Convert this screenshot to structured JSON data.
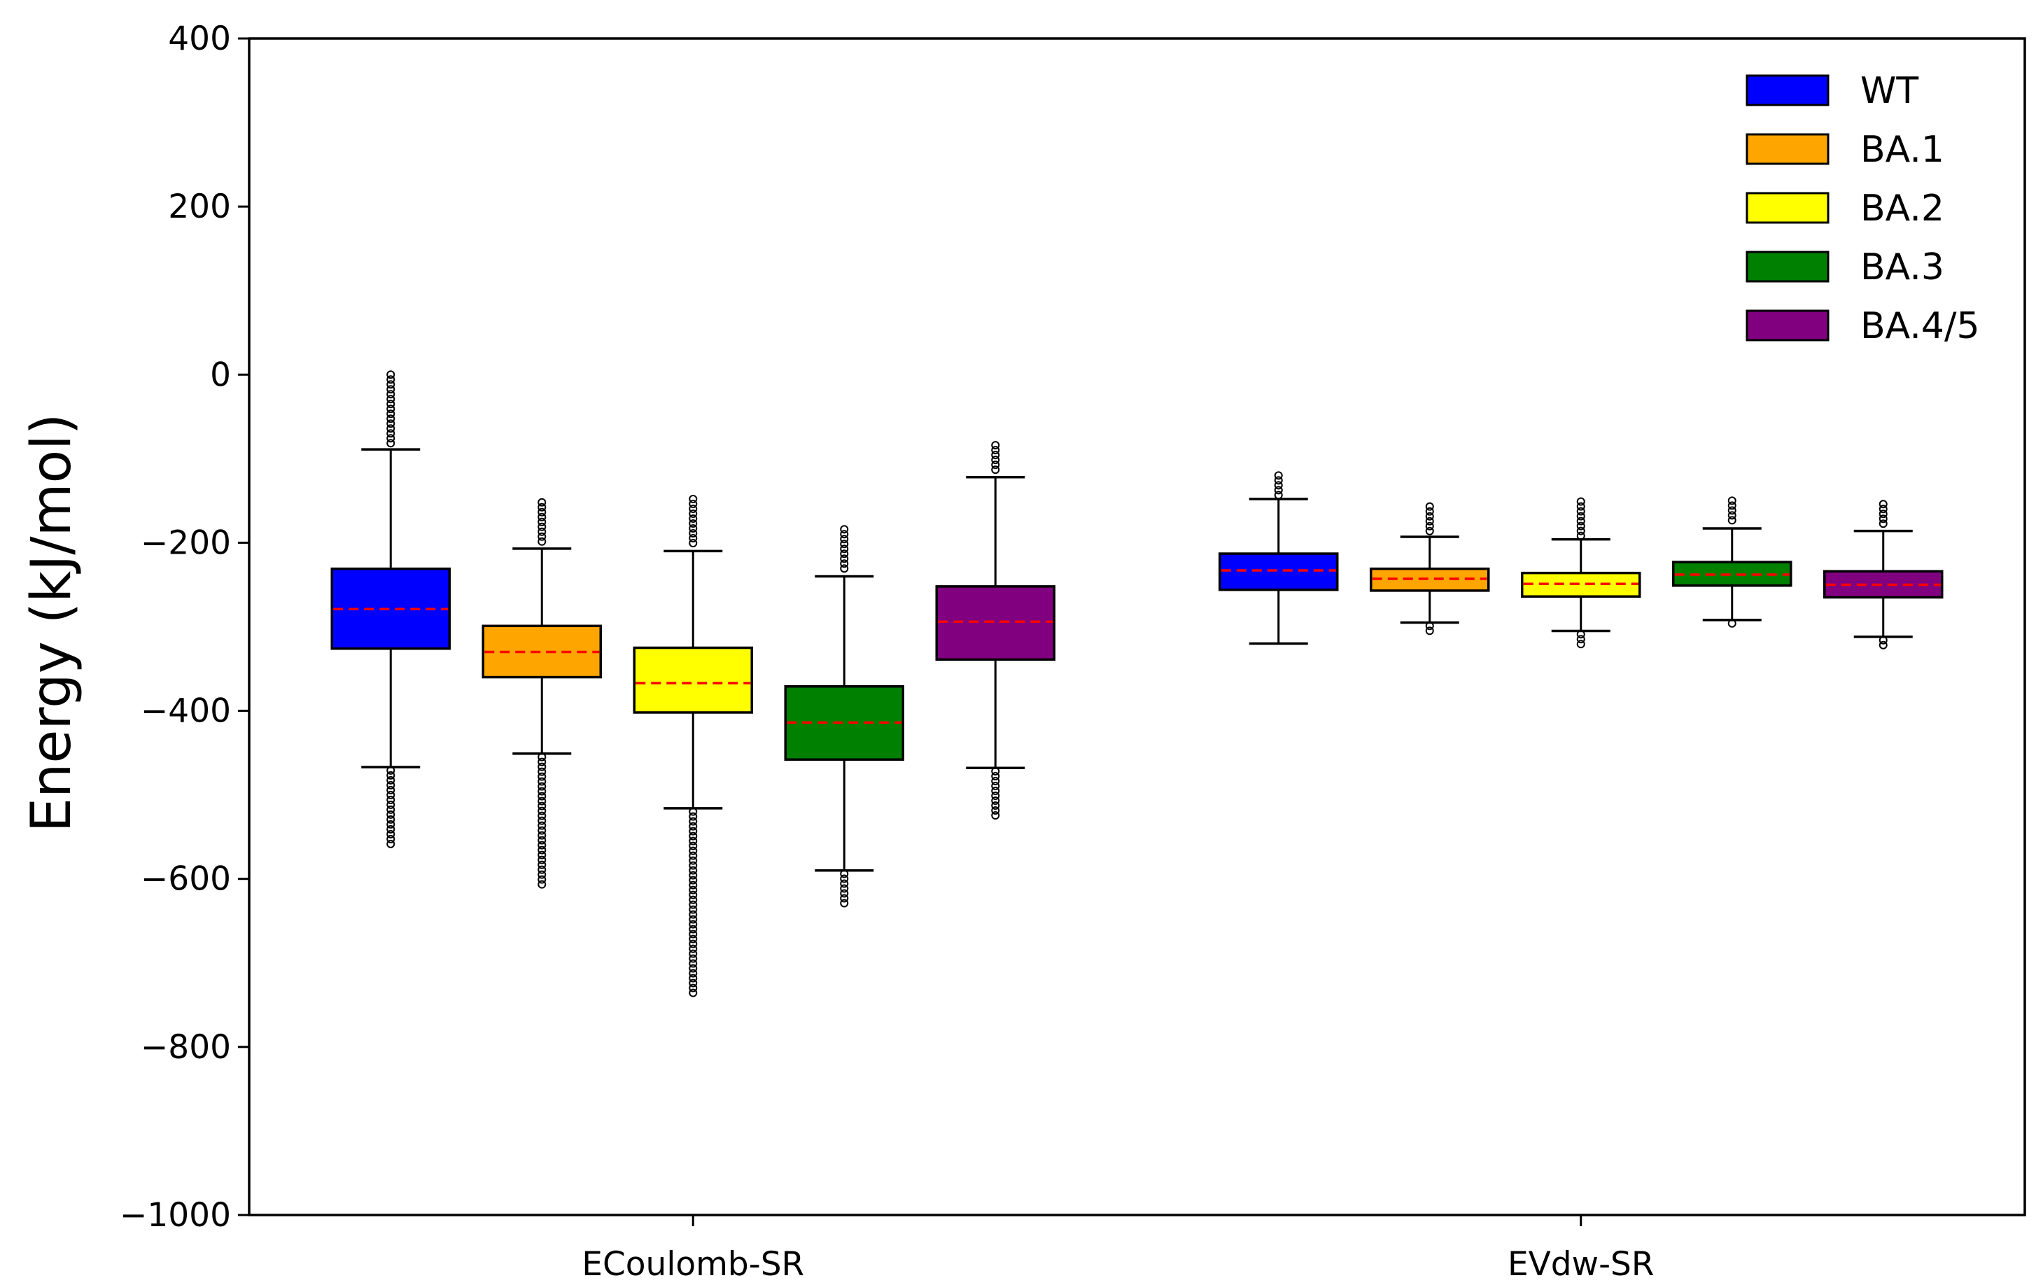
{
  "chart_data": {
    "type": "box",
    "title": "",
    "xlabel": "",
    "ylabel": "Energy  (kJ/mol)",
    "ylim": [
      -1000,
      400
    ],
    "yticks": [
      400,
      200,
      0,
      -200,
      -400,
      -600,
      -800,
      -1000
    ],
    "ytick_labels": [
      "400",
      "200",
      "0",
      "−200",
      "−400",
      "−600",
      "−800",
      "−1000"
    ],
    "categories": [
      "ECoulomb-SR",
      "EVdw-SR"
    ],
    "grid": false,
    "legend_position": "top-right",
    "median_color": "#ff0000",
    "series": [
      {
        "name": "WT",
        "color": "#0000ff",
        "boxes": [
          {
            "q1": -326,
            "median": -279,
            "q3": -231,
            "whisker_low": -467,
            "whisker_high": -89,
            "outlier_low": -563,
            "outlier_high": 0
          },
          {
            "q1": -256,
            "median": -233,
            "q3": -213,
            "whisker_low": -320,
            "whisker_high": -148,
            "outlier_low": -320,
            "outlier_high": -120
          }
        ]
      },
      {
        "name": "BA.1",
        "color": "#ffa500",
        "boxes": [
          {
            "q1": -360,
            "median": -330,
            "q3": -299,
            "whisker_low": -451,
            "whisker_high": -207,
            "outlier_low": -612,
            "outlier_high": -152
          },
          {
            "q1": -257,
            "median": -243,
            "q3": -231,
            "whisker_low": -295,
            "whisker_high": -193,
            "outlier_low": -308,
            "outlier_high": -157
          }
        ]
      },
      {
        "name": "BA.2",
        "color": "#ffff00",
        "boxes": [
          {
            "q1": -402,
            "median": -367,
            "q3": -325,
            "whisker_low": -516,
            "whisker_high": -210,
            "outlier_low": -737,
            "outlier_high": -148
          },
          {
            "q1": -264,
            "median": -249,
            "q3": -236,
            "whisker_low": -305,
            "whisker_high": -196,
            "outlier_low": -325,
            "outlier_high": -151
          }
        ]
      },
      {
        "name": "BA.3",
        "color": "#008000",
        "boxes": [
          {
            "q1": -458,
            "median": -414,
            "q3": -371,
            "whisker_low": -590,
            "whisker_high": -240,
            "outlier_low": -633,
            "outlier_high": -184
          },
          {
            "q1": -251,
            "median": -238,
            "q3": -223,
            "whisker_low": -292,
            "whisker_high": -183,
            "outlier_low": -301,
            "outlier_high": -150
          }
        ]
      },
      {
        "name": "BA.4/5",
        "color": "#800080",
        "boxes": [
          {
            "q1": -339,
            "median": -294,
            "q3": -252,
            "whisker_low": -468,
            "whisker_high": -122,
            "outlier_low": -530,
            "outlier_high": -84
          },
          {
            "q1": -265,
            "median": -250,
            "q3": -234,
            "whisker_low": -312,
            "whisker_high": -186,
            "outlier_low": -326,
            "outlier_high": -154
          }
        ]
      }
    ]
  }
}
